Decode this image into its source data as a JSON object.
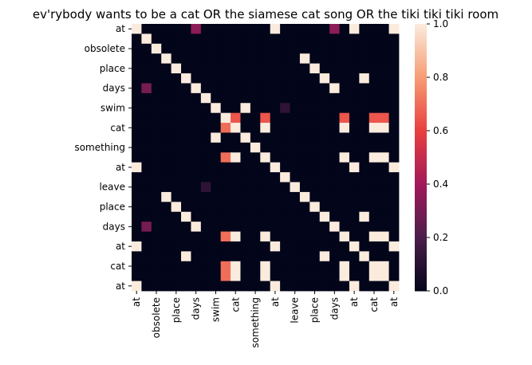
{
  "chart_data": {
    "type": "heatmap",
    "title": "ev'rybody wants to be a cat OR the siamese cat song OR the tiki tiki tiki room",
    "categories": [
      "at",
      null,
      "obsolete",
      null,
      "place",
      null,
      "days",
      null,
      "swim",
      null,
      "cat",
      null,
      "something",
      null,
      "at",
      null,
      "leave",
      null,
      "place",
      null,
      "days",
      null,
      "at",
      null,
      "cat",
      null,
      "at"
    ],
    "z": [
      [
        1,
        0,
        0,
        0,
        0,
        0,
        0.35,
        0,
        0,
        0,
        0,
        0,
        0,
        0,
        1,
        0,
        0,
        0,
        0,
        0,
        0.35,
        0,
        1,
        0,
        0,
        0,
        1
      ],
      [
        0,
        1,
        0,
        0,
        0,
        0,
        0,
        0,
        0,
        0,
        0,
        0,
        0,
        0,
        0,
        0,
        0,
        0,
        0,
        0,
        0,
        0,
        0,
        0,
        0,
        0,
        0
      ],
      [
        0,
        0,
        1,
        0,
        0,
        0,
        0,
        0,
        0,
        0,
        0,
        0,
        0,
        0,
        0,
        0,
        0,
        0,
        0,
        0,
        0,
        0,
        0,
        0,
        0,
        0,
        0
      ],
      [
        0,
        0,
        0,
        1,
        0,
        0,
        0,
        0,
        0,
        0,
        0,
        0,
        0,
        0,
        0,
        0,
        0,
        1,
        0,
        0,
        0,
        0,
        0,
        0,
        0,
        0,
        0
      ],
      [
        0,
        0,
        0,
        0,
        1,
        0,
        0,
        0,
        0,
        0,
        0,
        0,
        0,
        0,
        0,
        0,
        0,
        0,
        1,
        0,
        0,
        0,
        0,
        0,
        0,
        0,
        0
      ],
      [
        0,
        0,
        0,
        0,
        0,
        1,
        0,
        0,
        0,
        0,
        0,
        0,
        0,
        0,
        0,
        0,
        0,
        0,
        0,
        1,
        0,
        0,
        0,
        1,
        0,
        0,
        0
      ],
      [
        0,
        0.3,
        0,
        0,
        0,
        0,
        1,
        0,
        0,
        0,
        0,
        0,
        0,
        0,
        0,
        0,
        0,
        0,
        0,
        0,
        1,
        0,
        0,
        0,
        0,
        0,
        0
      ],
      [
        0,
        0,
        0,
        0,
        0,
        0,
        0,
        1,
        0,
        0,
        0,
        0,
        0,
        0,
        0,
        0,
        0,
        0,
        0,
        0,
        0,
        0,
        0,
        0,
        0,
        0,
        0
      ],
      [
        0,
        0,
        0,
        0,
        0,
        0,
        0,
        0,
        1,
        0,
        0,
        1,
        0,
        0,
        0,
        0.12,
        0,
        0,
        0,
        0,
        0,
        0,
        0,
        0,
        0,
        0,
        0
      ],
      [
        0,
        0,
        0,
        0,
        0,
        0,
        0,
        0,
        0,
        1,
        0.65,
        0,
        0,
        0.65,
        0,
        0,
        0,
        0,
        0,
        0,
        0,
        0.65,
        0,
        0,
        0.65,
        0.65,
        0
      ],
      [
        0,
        0,
        0,
        0,
        0,
        0,
        0,
        0,
        0,
        0.7,
        1,
        0,
        0,
        1,
        0,
        0,
        0,
        0,
        0,
        0,
        0,
        1,
        0,
        0,
        1,
        1,
        0
      ],
      [
        0,
        0,
        0,
        0,
        0,
        0,
        0,
        0,
        1,
        0,
        0,
        1,
        0,
        0,
        0,
        0,
        0,
        0,
        0,
        0,
        0,
        0,
        0,
        0,
        0,
        0,
        0
      ],
      [
        0,
        0,
        0,
        0,
        0,
        0,
        0,
        0,
        0,
        0,
        0,
        0,
        1,
        0,
        0,
        0,
        0,
        0,
        0,
        0,
        0,
        0,
        0,
        0,
        0,
        0,
        0
      ],
      [
        0,
        0,
        0,
        0,
        0,
        0,
        0,
        0,
        0,
        0.7,
        1,
        0,
        0,
        1,
        0,
        0,
        0,
        0,
        0,
        0,
        0,
        1,
        0,
        0,
        1,
        1,
        0
      ],
      [
        1,
        0,
        0,
        0,
        0,
        0,
        0,
        0,
        0,
        0,
        0,
        0,
        0,
        0,
        1,
        0,
        0,
        0,
        0,
        0,
        0,
        0,
        1,
        0,
        0,
        0,
        1
      ],
      [
        0,
        0,
        0,
        0,
        0,
        0,
        0,
        0,
        0,
        0,
        0,
        0,
        0,
        0,
        0,
        1,
        0,
        0,
        0,
        0,
        0,
        0,
        0,
        0,
        0,
        0,
        0
      ],
      [
        0,
        0,
        0,
        0,
        0,
        0,
        0,
        0.12,
        0,
        0,
        0,
        0,
        0,
        0,
        0,
        0,
        1,
        0,
        0,
        0,
        0,
        0,
        0,
        0,
        0,
        0,
        0
      ],
      [
        0,
        0,
        0,
        1,
        0,
        0,
        0,
        0,
        0,
        0,
        0,
        0,
        0,
        0,
        0,
        0,
        0,
        1,
        0,
        0,
        0,
        0,
        0,
        0,
        0,
        0,
        0
      ],
      [
        0,
        0,
        0,
        0,
        1,
        0,
        0,
        0,
        0,
        0,
        0,
        0,
        0,
        0,
        0,
        0,
        0,
        0,
        1,
        0,
        0,
        0,
        0,
        0,
        0,
        0,
        0
      ],
      [
        0,
        0,
        0,
        0,
        0,
        1,
        0,
        0,
        0,
        0,
        0,
        0,
        0,
        0,
        0,
        0,
        0,
        0,
        0,
        1,
        0,
        0,
        0,
        1,
        0,
        0,
        0
      ],
      [
        0,
        0.3,
        0,
        0,
        0,
        0,
        1,
        0,
        0,
        0,
        0,
        0,
        0,
        0,
        0,
        0,
        0,
        0,
        0,
        0,
        1,
        0,
        0,
        0,
        0,
        0,
        0
      ],
      [
        0,
        0,
        0,
        0,
        0,
        0,
        0,
        0,
        0,
        0.7,
        1,
        0,
        0,
        1,
        0,
        0,
        0,
        0,
        0,
        0,
        0,
        1,
        0,
        0,
        1,
        1,
        0
      ],
      [
        1,
        0,
        0,
        0,
        0,
        0,
        0,
        0,
        0,
        0,
        0,
        0,
        0,
        0,
        1,
        0,
        0,
        0,
        0,
        0,
        0,
        0,
        1,
        0,
        0,
        0,
        1
      ],
      [
        0,
        0,
        0,
        0,
        0,
        1,
        0,
        0,
        0,
        0,
        0,
        0,
        0,
        0,
        0,
        0,
        0,
        0,
        0,
        1,
        0,
        0,
        0,
        1,
        0,
        0,
        0
      ],
      [
        0,
        0,
        0,
        0,
        0,
        0,
        0,
        0,
        0,
        0.7,
        1,
        0,
        0,
        1,
        0,
        0,
        0,
        0,
        0,
        0,
        0,
        1,
        0,
        0,
        1,
        1,
        0
      ],
      [
        0,
        0,
        0,
        0,
        0,
        0,
        0,
        0,
        0,
        0.7,
        1,
        0,
        0,
        1,
        0,
        0,
        0,
        0,
        0,
        0,
        0,
        1,
        0,
        0,
        1,
        1,
        0
      ],
      [
        1,
        0,
        0,
        0,
        0,
        0,
        0,
        0,
        0,
        0,
        0,
        0,
        0,
        0,
        1,
        0,
        0,
        0,
        0,
        0,
        0,
        0,
        1,
        0,
        0,
        0,
        1
      ]
    ],
    "zlim": [
      0,
      1
    ],
    "zticks": [
      {
        "value": 0,
        "label": "0.0"
      },
      0.2,
      0.4,
      0.6,
      0.8,
      {
        "value": 1,
        "label": "1.0"
      }
    ],
    "colorscale": [
      "#03051a",
      "#4c1d4b",
      "#a11a5b",
      "#e83f3f",
      "#f69c73",
      "#faebdd"
    ]
  }
}
